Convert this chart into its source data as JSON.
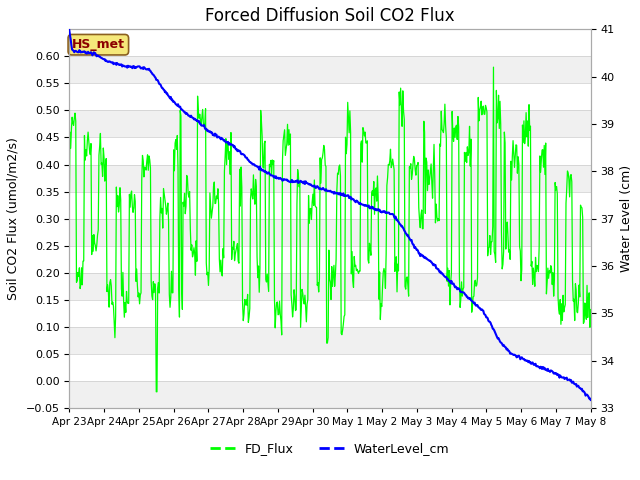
{
  "title": "Forced Diffusion Soil CO2 Flux",
  "ylabel_left": "Soil CO2 Flux (umol/m2/s)",
  "ylabel_right": "Water Level (cm)",
  "ylim_left": [
    -0.05,
    0.65
  ],
  "ylim_right": [
    33.0,
    41.0
  ],
  "yticks_left": [
    -0.05,
    0.0,
    0.05,
    0.1,
    0.15,
    0.2,
    0.25,
    0.3,
    0.35,
    0.4,
    0.45,
    0.5,
    0.55,
    0.6
  ],
  "yticks_right": [
    33.0,
    34.0,
    35.0,
    36.0,
    37.0,
    38.0,
    39.0,
    40.0,
    41.0
  ],
  "xtick_labels": [
    "Apr 23",
    "Apr 24",
    "Apr 25",
    "Apr 26",
    "Apr 27",
    "Apr 28",
    "Apr 29",
    "Apr 30",
    "May 1",
    "May 2",
    "May 3",
    "May 4",
    "May 5",
    "May 6",
    "May 7",
    "May 8"
  ],
  "legend_entries": [
    "FD_Flux",
    "WaterLevel_cm"
  ],
  "flux_color": "#00FF00",
  "water_color": "#0000FF",
  "annotation_text": "HS_met",
  "background_color": "#ffffff",
  "band_color_light": "#f0f0f0",
  "band_color_white": "#ffffff"
}
